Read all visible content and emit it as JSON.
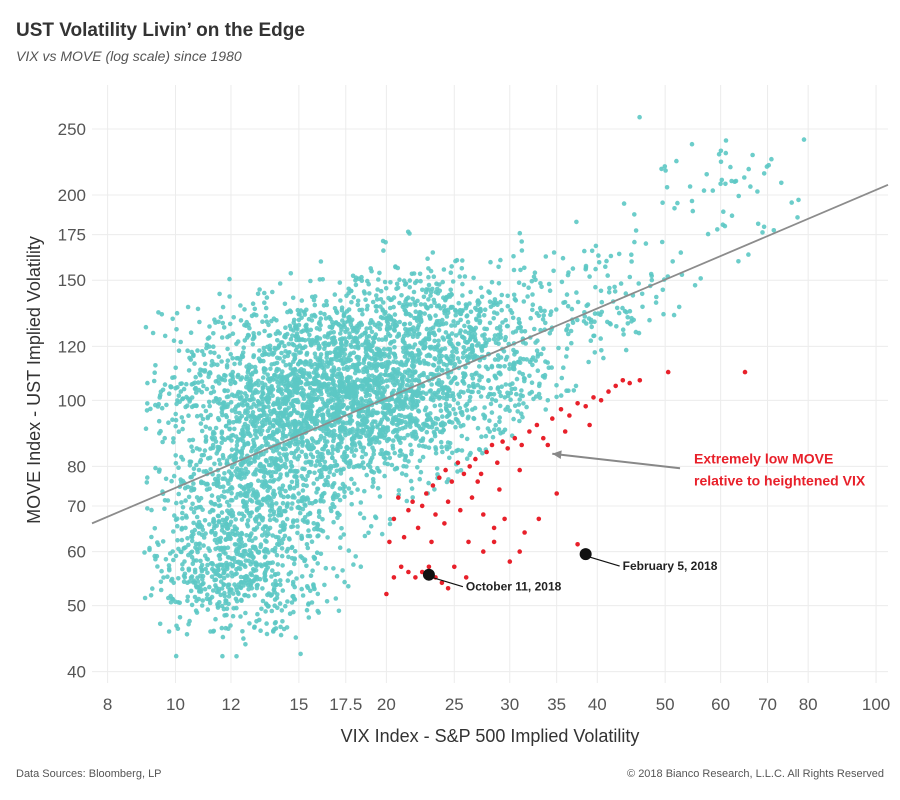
{
  "header": {
    "title": "UST Volatility Livin’ on the Edge",
    "subtitle": "VIX vs MOVE (log scale) since 1980"
  },
  "footer": {
    "source": "Data Sources: Bloomberg, LP",
    "copyright": "© 2018 Bianco Research, L.L.C. All Rights Reserved"
  },
  "colors": {
    "main_points": "#5cc8c4",
    "low_move_points": "#e8202a",
    "highlight_points": "#111111",
    "trend_line": "#8c8c8c",
    "annotation_text": "#e8202a",
    "grid": "#ececec"
  },
  "chart_data": {
    "type": "scatter",
    "title": "UST Volatility Livin’ on the Edge",
    "subtitle": "VIX vs MOVE (log scale) since 1980",
    "xlabel": "VIX Index - S&P 500 Implied Volatility",
    "ylabel": "MOVE Index - UST Implied Volatility",
    "x_scale": "log",
    "y_scale": "log",
    "xlim": [
      7.6,
      104
    ],
    "ylim": [
      38.5,
      290
    ],
    "x_ticks": [
      8,
      10,
      12,
      15,
      17.5,
      20,
      25,
      30,
      35,
      40,
      50,
      60,
      70,
      80,
      100
    ],
    "x_tick_labels": [
      "8",
      "10",
      "12",
      "15",
      "17.5",
      "20",
      "25",
      "30",
      "35",
      "40",
      "50",
      "60",
      "70",
      "80",
      "100"
    ],
    "y_ticks": [
      40,
      50,
      60,
      70,
      80,
      100,
      120,
      150,
      175,
      200,
      250
    ],
    "y_tick_labels": [
      "40",
      "50",
      "60",
      "70",
      "80",
      "100",
      "120",
      "150",
      "175",
      "200",
      "250"
    ],
    "grid": true,
    "trend_line": {
      "x": [
        7.6,
        104
      ],
      "y": [
        66,
        207
      ]
    },
    "series": [
      {
        "clusters": [
          {
            "cx": 15,
            "cy": 105,
            "sx": 0.22,
            "sy": 0.15,
            "n": 1300
          },
          {
            "cx": 19,
            "cy": 98,
            "sx": 0.2,
            "sy": 0.13,
            "n": 1100
          },
          {
            "cx": 13,
            "cy": 72,
            "sx": 0.17,
            "sy": 0.17,
            "n": 1000
          },
          {
            "cx": 12,
            "cy": 55,
            "sx": 0.14,
            "sy": 0.1,
            "n": 400
          },
          {
            "cx": 22,
            "cy": 130,
            "sx": 0.17,
            "sy": 0.1,
            "n": 450
          },
          {
            "cx": 28,
            "cy": 115,
            "sx": 0.15,
            "sy": 0.12,
            "n": 350
          },
          {
            "cx": 40,
            "cy": 140,
            "sx": 0.16,
            "sy": 0.12,
            "n": 150
          },
          {
            "cx": 62,
            "cy": 200,
            "sx": 0.12,
            "sy": 0.13,
            "n": 60
          }
        ]
      },
      {
        "points": [
          [
            20,
            52
          ],
          [
            20.5,
            55
          ],
          [
            21,
            57
          ],
          [
            21.5,
            56
          ],
          [
            22,
            55
          ],
          [
            22.5,
            56
          ],
          [
            23,
            57
          ],
          [
            23.5,
            55
          ],
          [
            24,
            54
          ],
          [
            25,
            57
          ],
          [
            26,
            55
          ],
          [
            24.5,
            53
          ],
          [
            20.2,
            62
          ],
          [
            21.2,
            63
          ],
          [
            22.2,
            65
          ],
          [
            23.2,
            62
          ],
          [
            24.2,
            66
          ],
          [
            26.2,
            62
          ],
          [
            27.5,
            60
          ],
          [
            28.5,
            62
          ],
          [
            30,
            58
          ],
          [
            31,
            60
          ],
          [
            33,
            67
          ],
          [
            20.5,
            67
          ],
          [
            21.5,
            69
          ],
          [
            22.5,
            70
          ],
          [
            23.5,
            68
          ],
          [
            24.5,
            71
          ],
          [
            25.5,
            69
          ],
          [
            26.5,
            72
          ],
          [
            27.5,
            68
          ],
          [
            28.5,
            65
          ],
          [
            29.5,
            67
          ],
          [
            31.5,
            64
          ],
          [
            20.8,
            72
          ],
          [
            21.8,
            71
          ],
          [
            22.8,
            73
          ],
          [
            23.3,
            75
          ],
          [
            23.8,
            77
          ],
          [
            24.3,
            79
          ],
          [
            24.8,
            76
          ],
          [
            25.3,
            81
          ],
          [
            25.8,
            78
          ],
          [
            26.3,
            80
          ],
          [
            26.8,
            82
          ],
          [
            27.3,
            78
          ],
          [
            27.8,
            84
          ],
          [
            28.3,
            86
          ],
          [
            28.8,
            81
          ],
          [
            29.3,
            87
          ],
          [
            29.8,
            85
          ],
          [
            30.5,
            88
          ],
          [
            31.2,
            86
          ],
          [
            32,
            90
          ],
          [
            32.8,
            92
          ],
          [
            33.5,
            88
          ],
          [
            34.5,
            94
          ],
          [
            35.5,
            97
          ],
          [
            36.5,
            95
          ],
          [
            37.5,
            99
          ],
          [
            38.5,
            98
          ],
          [
            39.5,
            101
          ],
          [
            40.5,
            100
          ],
          [
            41.5,
            103
          ],
          [
            42.5,
            105
          ],
          [
            43.5,
            107
          ],
          [
            44.5,
            106
          ],
          [
            46,
            107
          ],
          [
            50.5,
            110
          ],
          [
            65,
            110
          ],
          [
            39,
            92
          ],
          [
            36,
            90
          ],
          [
            34,
            86
          ],
          [
            31,
            79
          ],
          [
            29,
            74
          ],
          [
            27,
            76
          ],
          [
            35,
            73
          ],
          [
            37.5,
            61.5
          ]
        ]
      },
      {
        "points": [
          [
            23,
            55.5
          ],
          [
            38.5,
            59.5
          ]
        ],
        "labels": [
          "October 11, 2018",
          "February 5, 2018"
        ]
      }
    ],
    "annotation": {
      "text": [
        "Extremely low MOVE",
        "relative to heightened VIX"
      ],
      "arrow_from": [
        52.5,
        79.5
      ],
      "arrow_to": [
        34.5,
        83.5
      ]
    }
  }
}
